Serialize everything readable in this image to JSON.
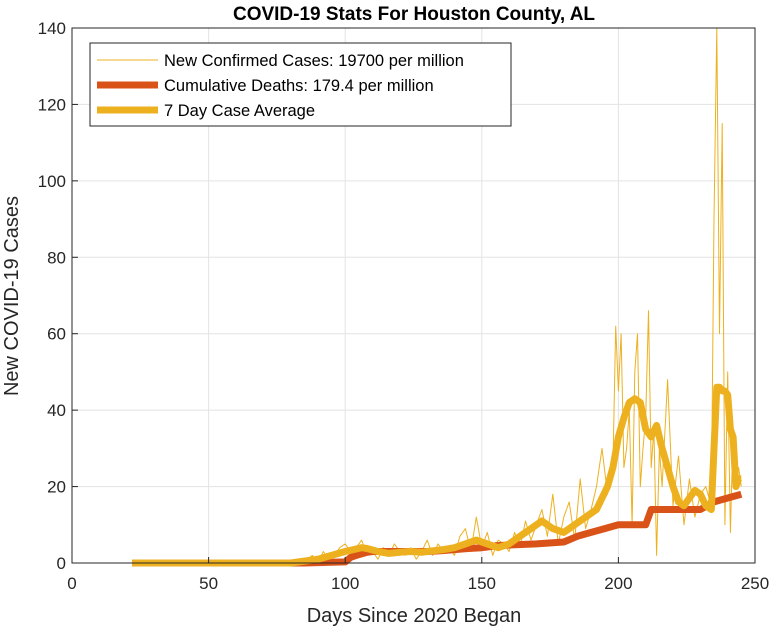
{
  "chart_data": {
    "type": "line",
    "title": "COVID-19 Stats For Houston County, AL",
    "xlabel": "Days Since 2020 Began",
    "ylabel": "New COVID-19 Cases",
    "xlim": [
      0,
      250
    ],
    "ylim": [
      0,
      140
    ],
    "xticks": [
      0,
      50,
      100,
      150,
      200,
      250
    ],
    "yticks": [
      0,
      20,
      40,
      60,
      80,
      100,
      120,
      140
    ],
    "grid": true,
    "legend_position": "top-left",
    "series": [
      {
        "name": "New Confirmed Cases: 19700 per million",
        "color": "#EDB120",
        "style": "thin",
        "x": [
          22,
          30,
          40,
          50,
          60,
          70,
          80,
          84,
          86,
          88,
          90,
          92,
          94,
          96,
          98,
          100,
          102,
          104,
          106,
          108,
          110,
          112,
          114,
          116,
          118,
          120,
          122,
          124,
          126,
          128,
          130,
          132,
          134,
          136,
          138,
          140,
          142,
          144,
          146,
          148,
          150,
          152,
          154,
          156,
          158,
          160,
          162,
          164,
          166,
          168,
          170,
          172,
          174,
          176,
          178,
          180,
          182,
          184,
          186,
          188,
          190,
          192,
          194,
          196,
          198,
          199,
          200,
          201,
          202,
          203,
          204,
          205,
          206,
          207,
          208,
          209,
          210,
          211,
          212,
          213,
          214,
          215,
          216,
          218,
          220,
          222,
          224,
          226,
          228,
          230,
          232,
          234,
          235,
          236,
          237,
          238,
          239,
          240,
          241,
          242,
          243,
          244,
          245
        ],
        "values": [
          0,
          0,
          0,
          0,
          0,
          0,
          0,
          0,
          1,
          2,
          0,
          3,
          1,
          2,
          4,
          5,
          3,
          4,
          6,
          2,
          3,
          1,
          4,
          2,
          5,
          3,
          2,
          4,
          1,
          3,
          6,
          2,
          5,
          3,
          4,
          2,
          7,
          9,
          3,
          12,
          4,
          8,
          2,
          6,
          5,
          3,
          8,
          4,
          11,
          6,
          10,
          14,
          7,
          18,
          5,
          12,
          16,
          6,
          22,
          9,
          14,
          20,
          30,
          18,
          25,
          62,
          45,
          60,
          25,
          30,
          40,
          10,
          50,
          60,
          20,
          30,
          38,
          66,
          25,
          35,
          2,
          30,
          20,
          48,
          15,
          28,
          10,
          22,
          12,
          18,
          20,
          15,
          90,
          140,
          60,
          115,
          10,
          50,
          8,
          35,
          20,
          25,
          20
        ]
      },
      {
        "name": "Cumulative Deaths: 179.4 per million",
        "color": "#D95319",
        "style": "thick",
        "x": [
          22,
          85,
          100,
          102,
          105,
          108,
          110,
          130,
          135,
          140,
          145,
          150,
          152,
          155,
          160,
          170,
          180,
          185,
          190,
          195,
          200,
          205,
          210,
          212,
          230,
          235,
          240,
          245
        ],
        "values": [
          0,
          0,
          0.3,
          1.5,
          2.2,
          2.8,
          3,
          3,
          3.2,
          3.5,
          3.8,
          4,
          4.2,
          4.5,
          4.7,
          5,
          5.5,
          7,
          8,
          9,
          10,
          10,
          10,
          14,
          14,
          16,
          17,
          18
        ]
      },
      {
        "name": "7 Day Case Average",
        "color": "#EDB120",
        "style": "thick",
        "x": [
          22,
          80,
          85,
          90,
          95,
          100,
          103,
          106,
          108,
          112,
          116,
          120,
          124,
          128,
          132,
          136,
          140,
          144,
          148,
          152,
          156,
          160,
          164,
          168,
          172,
          176,
          180,
          184,
          188,
          192,
          196,
          198,
          200,
          202,
          204,
          206,
          208,
          210,
          212,
          214,
          216,
          218,
          220,
          222,
          224,
          226,
          228,
          230,
          232,
          234,
          235,
          236,
          237,
          238,
          239,
          240,
          241,
          242,
          243,
          244,
          245
        ],
        "values": [
          0,
          0,
          0.5,
          1,
          2,
          3,
          3.5,
          4,
          3.8,
          3,
          2.5,
          2.8,
          3,
          2.8,
          3.2,
          3.5,
          4,
          5,
          6,
          5,
          4,
          5,
          7,
          9,
          11,
          9,
          8,
          10,
          12,
          14,
          20,
          25,
          33,
          38,
          42,
          43,
          42,
          35,
          33,
          36,
          30,
          25,
          20,
          16,
          15,
          17,
          19,
          18,
          15,
          14,
          30,
          46,
          46,
          45,
          45,
          44,
          35,
          33,
          20,
          22,
          22
        ]
      }
    ]
  }
}
